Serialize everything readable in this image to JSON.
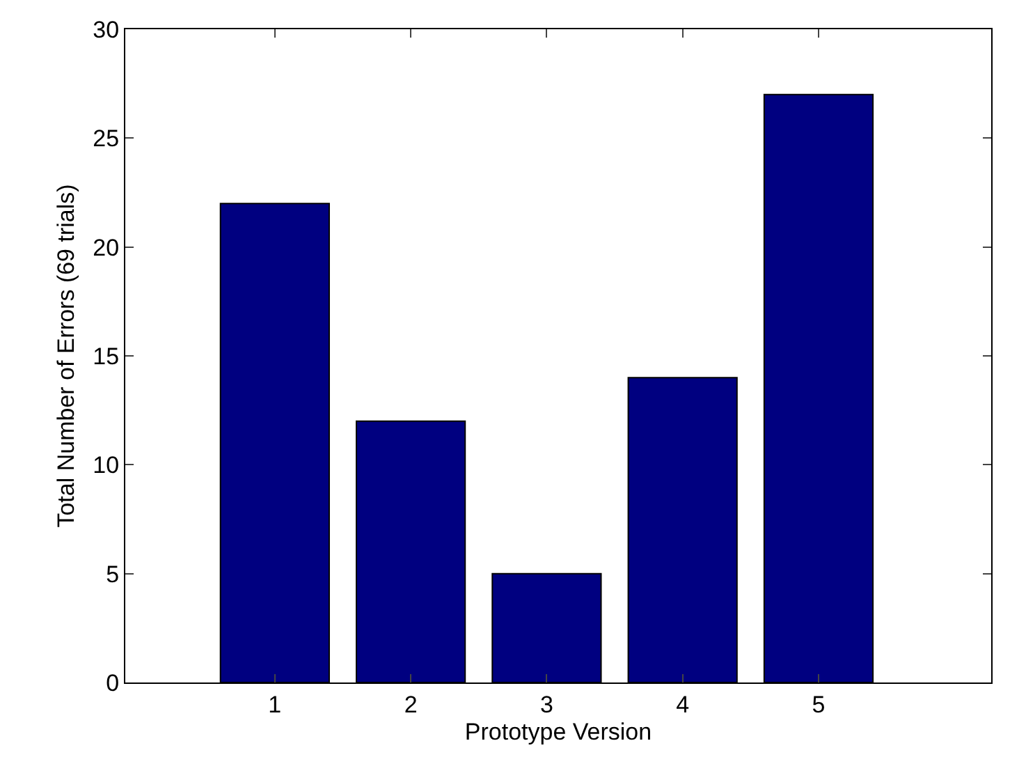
{
  "chart_data": {
    "type": "bar",
    "xlabel": "Prototype Version",
    "ylabel": "Total Number of Errors (69 trials)",
    "categories": [
      "1",
      "2",
      "3",
      "4",
      "5"
    ],
    "values": [
      22,
      12,
      5,
      14,
      27
    ],
    "color": "#000080",
    "ylim": [
      0,
      30
    ],
    "yticks": [
      0,
      5,
      10,
      15,
      20,
      25,
      30
    ]
  }
}
